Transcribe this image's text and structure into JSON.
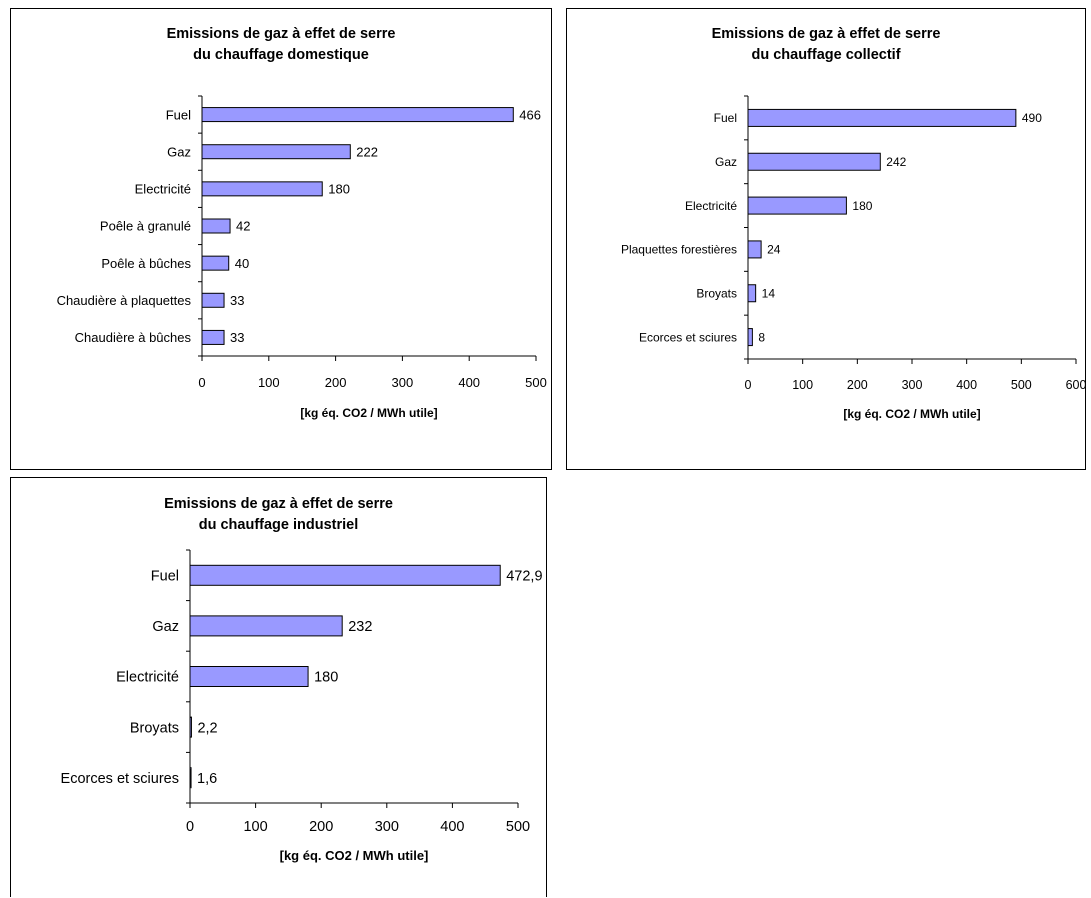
{
  "colors": {
    "bar_fill": "#9999FF",
    "bar_stroke": "#000000",
    "axis": "#000000",
    "background": "#FFFFFF"
  },
  "chart_data": [
    {
      "type": "bar",
      "orientation": "horizontal",
      "title_lines": [
        "Emissions de gaz à effet de serre",
        "du chauffage domestique"
      ],
      "categories": [
        "Fuel",
        "Gaz",
        "Electricité",
        "Poêle à granulé",
        "Poêle à bûches",
        "Chaudière à plaquettes",
        "Chaudière à bûches"
      ],
      "values": [
        466,
        222,
        180,
        42,
        40,
        33,
        33
      ],
      "value_labels": [
        "466",
        "222",
        "180",
        "42",
        "40",
        "33",
        "33"
      ],
      "xlabel": "[kg éq. CO2 / MWh utile]",
      "xlim": [
        0,
        500
      ],
      "ticks": [
        0,
        100,
        200,
        300,
        400,
        500
      ],
      "grid": false,
      "legend": "none"
    },
    {
      "type": "bar",
      "orientation": "horizontal",
      "title_lines": [
        "Emissions de gaz à effet de serre",
        "du chauffage collectif"
      ],
      "categories": [
        "Fuel",
        "Gaz",
        "Electricité",
        "Plaquettes forestières",
        "Broyats",
        "Ecorces et sciures"
      ],
      "values": [
        490,
        242,
        180,
        24,
        14,
        8
      ],
      "value_labels": [
        "490",
        "242",
        "180",
        "24",
        "14",
        "8"
      ],
      "xlabel": "[kg éq. CO2 / MWh utile]",
      "xlim": [
        0,
        600
      ],
      "ticks": [
        0,
        100,
        200,
        300,
        400,
        500,
        600
      ],
      "grid": false,
      "legend": "none"
    },
    {
      "type": "bar",
      "orientation": "horizontal",
      "title_lines": [
        "Emissions de gaz à effet de serre",
        "du chauffage industriel"
      ],
      "categories": [
        "Fuel",
        "Gaz",
        "Electricité",
        "Broyats",
        "Ecorces et sciures"
      ],
      "values": [
        472.9,
        232,
        180,
        2.2,
        1.6
      ],
      "value_labels": [
        "472,9",
        "232",
        "180",
        "2,2",
        "1,6"
      ],
      "xlabel": "[kg éq. CO2 / MWh utile]",
      "xlim": [
        0,
        500
      ],
      "ticks": [
        0,
        100,
        200,
        300,
        400,
        500
      ],
      "grid": false,
      "legend": "none"
    }
  ]
}
